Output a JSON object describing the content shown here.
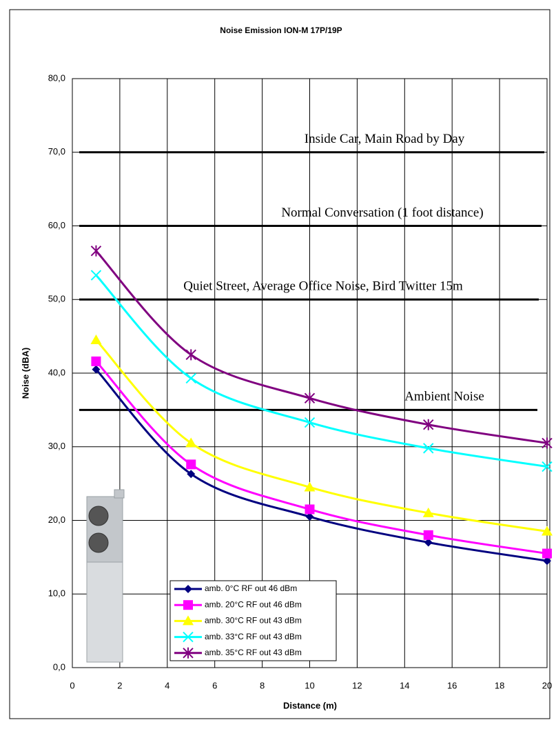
{
  "chart_data": {
    "type": "line",
    "title": "Noise Emission ION-M 17P/19P",
    "x_label": "Distance (m)",
    "y_label": "Noise (dBA)",
    "x": [
      1,
      5,
      10,
      15,
      20
    ],
    "series": [
      {
        "name": "amb. 0°C RF out 46 dBm",
        "color": "#000080",
        "marker": "diamond",
        "values": [
          40.5,
          26.3,
          20.5,
          17.0,
          14.5
        ]
      },
      {
        "name": "amb. 20°C RF out 46 dBm",
        "color": "#ff00ff",
        "marker": "square",
        "values": [
          41.6,
          27.6,
          21.5,
          18.0,
          15.5
        ]
      },
      {
        "name": "amb. 30°C RF out 43 dBm",
        "color": "#ffff00",
        "marker": "triangle",
        "values": [
          44.5,
          30.5,
          24.5,
          21.0,
          18.5
        ]
      },
      {
        "name": "amb. 33°C RF out 43 dBm",
        "color": "#00ffff",
        "marker": "x",
        "values": [
          53.3,
          39.3,
          33.3,
          29.8,
          27.3
        ]
      },
      {
        "name": "amb. 35°C RF out 43 dBm",
        "color": "#800080",
        "marker": "star",
        "values": [
          56.6,
          42.5,
          36.6,
          33.0,
          30.5
        ]
      }
    ],
    "reference_lines": [
      {
        "label": "Inside Car, Main Road by Day",
        "value": 70
      },
      {
        "label": "Normal Conversation (1 foot distance)",
        "value": 60
      },
      {
        "label": "Quiet Street, Average Office Noise, Bird Twitter 15m",
        "value": 50
      },
      {
        "label": "Ambient Noise",
        "value": 35
      }
    ],
    "xlim": [
      0,
      20
    ],
    "xticks": [
      0,
      2,
      4,
      6,
      8,
      10,
      12,
      14,
      16,
      18,
      20
    ],
    "ylim": [
      0,
      80
    ],
    "yticks": [
      {
        "value": 0,
        "label": "0,0"
      },
      {
        "value": 10,
        "label": "10,0"
      },
      {
        "value": 20,
        "label": "20,0"
      },
      {
        "value": 30,
        "label": "30,0"
      },
      {
        "value": 40,
        "label": "40,0"
      },
      {
        "value": 50,
        "label": "50,0"
      },
      {
        "value": 60,
        "label": "60,0"
      },
      {
        "value": 70,
        "label": "70,0"
      },
      {
        "value": 80,
        "label": "80,0"
      }
    ],
    "grid": true,
    "legend_position": "lower-left"
  }
}
